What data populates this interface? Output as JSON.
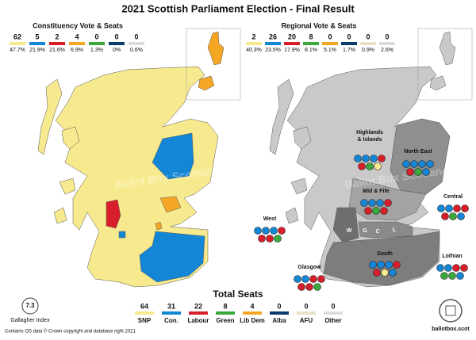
{
  "title": "2021 Scottish Parliament Election - Final Result",
  "watermark": "Ballot Box Scotland",
  "constituency": {
    "heading": "Constituency Vote & Seats",
    "parties": [
      {
        "seats": "62",
        "share": "47.7%",
        "color": "#f7ea8e"
      },
      {
        "seats": "5",
        "share": "21.9%",
        "color": "#1486d6"
      },
      {
        "seats": "2",
        "share": "21.6%",
        "color": "#d81e2b"
      },
      {
        "seats": "4",
        "share": "6.9%",
        "color": "#f5a623"
      },
      {
        "seats": "0",
        "share": "1.3%",
        "color": "#3aa83a"
      },
      {
        "seats": "0",
        "share": "0%",
        "color": "#0b3c6e"
      },
      {
        "seats": "0",
        "share": "0.6%",
        "color": "#dddddd"
      }
    ]
  },
  "regional": {
    "heading": "Regional Vote & Seats",
    "parties": [
      {
        "seats": "2",
        "share": "40.3%",
        "color": "#f7ea8e"
      },
      {
        "seats": "26",
        "share": "23.5%",
        "color": "#1486d6"
      },
      {
        "seats": "20",
        "share": "17.9%",
        "color": "#d81e2b"
      },
      {
        "seats": "8",
        "share": "8.1%",
        "color": "#3aa83a"
      },
      {
        "seats": "0",
        "share": "5.1%",
        "color": "#f5a623"
      },
      {
        "seats": "0",
        "share": "1.7%",
        "color": "#0b3c6e"
      },
      {
        "seats": "0",
        "share": "0.9%",
        "color": "#e8e3c8"
      },
      {
        "seats": "0",
        "share": "2.6%",
        "color": "#dddddd"
      }
    ]
  },
  "regions": [
    {
      "name": [
        "Highlands",
        "& Islands"
      ],
      "seats": [
        "#1486d6",
        "#1486d6",
        "#1486d6",
        "#d81e2b",
        "#d81e2b",
        "#3aa83a",
        "#f7ea8e"
      ]
    },
    {
      "name": [
        "North East"
      ],
      "seats": [
        "#1486d6",
        "#1486d6",
        "#1486d6",
        "#1486d6",
        "#d81e2b",
        "#3aa83a",
        "#1486d6"
      ]
    },
    {
      "name": [
        "Central"
      ],
      "seats": [
        "#1486d6",
        "#1486d6",
        "#d81e2b",
        "#d81e2b",
        "#d81e2b",
        "#3aa83a",
        "#1486d6"
      ]
    },
    {
      "name": [
        "West"
      ],
      "seats": [
        "#1486d6",
        "#1486d6",
        "#1486d6",
        "#d81e2b",
        "#d81e2b",
        "#d81e2b",
        "#3aa83a"
      ]
    },
    {
      "name": [
        "Mid & Fife"
      ],
      "seats": [
        "#1486d6",
        "#1486d6",
        "#1486d6",
        "#d81e2b",
        "#d81e2b",
        "#3aa83a",
        "#d81e2b"
      ]
    },
    {
      "name": [
        "Lothian"
      ],
      "seats": [
        "#1486d6",
        "#1486d6",
        "#d81e2b",
        "#d81e2b",
        "#3aa83a",
        "#3aa83a",
        "#1486d6"
      ]
    },
    {
      "name": [
        "Glasgow"
      ],
      "seats": [
        "#1486d6",
        "#1486d6",
        "#d81e2b",
        "#d81e2b",
        "#d81e2b",
        "#d81e2b",
        "#3aa83a"
      ]
    },
    {
      "name": [
        "South"
      ],
      "seats": [
        "#1486d6",
        "#1486d6",
        "#1486d6",
        "#d81e2b",
        "#d81e2b",
        "#f7ea8e",
        "#1486d6"
      ]
    }
  ],
  "map_letters": [
    "W",
    "G",
    "C",
    "L"
  ],
  "total": {
    "heading": "Total Seats",
    "parties": [
      {
        "seats": "64",
        "name": "SNP",
        "color": "#f7ea8e"
      },
      {
        "seats": "31",
        "name": "Con.",
        "color": "#1486d6"
      },
      {
        "seats": "22",
        "name": "Labour",
        "color": "#d81e2b"
      },
      {
        "seats": "8",
        "name": "Green",
        "color": "#3aa83a"
      },
      {
        "seats": "4",
        "name": "Lib Dem",
        "color": "#f5a623"
      },
      {
        "seats": "0",
        "name": "Alba",
        "color": "#0b3c6e"
      },
      {
        "seats": "0",
        "name": "AFU",
        "color": "#e8e3c8"
      },
      {
        "seats": "0",
        "name": "Other",
        "color": "#dddddd"
      }
    ]
  },
  "gallagher": {
    "value": "7.3",
    "label": "Gallagher Index"
  },
  "footer": {
    "credit": "Contains OS data © Crown copyright and database right 2021",
    "site": "ballotbox.scot"
  }
}
